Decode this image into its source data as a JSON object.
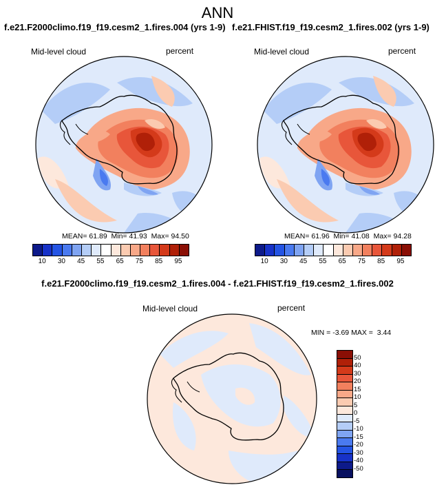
{
  "title": "ANN",
  "panels": [
    {
      "case": "f.e21.F2000climo.f19_f19.cesm2_1.fires.004 (yrs 1-9)",
      "variable": "Mid-level cloud",
      "units": "percent",
      "mean_label": "MEAN=",
      "mean": "61.89",
      "min_label": "Min=",
      "min": "41.93",
      "max_label": "Max=",
      "max": "94.50"
    },
    {
      "case": "f.e21.FHIST.f19_f19.cesm2_1.fires.002 (yrs 1-9)",
      "variable": "Mid-level cloud",
      "units": "percent",
      "mean_label": "MEAN=",
      "mean": "61.96",
      "min_label": "Min=",
      "min": "41.08",
      "max_label": "Max=",
      "max": "94.28"
    }
  ],
  "colorbar": {
    "labels": [
      "10",
      "30",
      "45",
      "55",
      "65",
      "75",
      "85",
      "95"
    ],
    "colors": [
      "#0d1a8a",
      "#1732c8",
      "#2454e4",
      "#4a7af0",
      "#7fa4f2",
      "#b4cdf7",
      "#dfeafb",
      "#ffffff",
      "#fde8dc",
      "#fbcbb1",
      "#f8a888",
      "#f2805e",
      "#e8563a",
      "#d43a1a",
      "#b02008",
      "#8a0f05"
    ]
  },
  "diff": {
    "title": "f.e21.F2000climo.f19_f19.cesm2_1.fires.004 - f.e21.FHIST.f19_f19.cesm2_1.fires.002",
    "variable": "Mid-level cloud",
    "units": "percent",
    "min_label": "MIN =",
    "min": "-3.69",
    "max_label": "MAX =",
    "max": "3.44",
    "colorbar_labels": [
      "50",
      "40",
      "30",
      "20",
      "15",
      "10",
      "5",
      "0",
      "-5",
      "-10",
      "-15",
      "-20",
      "-30",
      "-40",
      "-50"
    ],
    "colorbar_colors": [
      "#8a0f05",
      "#b02008",
      "#d43a1a",
      "#e8563a",
      "#f2805e",
      "#f8a888",
      "#fbcbb1",
      "#fde8dc",
      "#dfeafb",
      "#b4cdf7",
      "#7fa4f2",
      "#4a7af0",
      "#2454e4",
      "#1732c8",
      "#0d1a8a",
      "#081060"
    ]
  }
}
